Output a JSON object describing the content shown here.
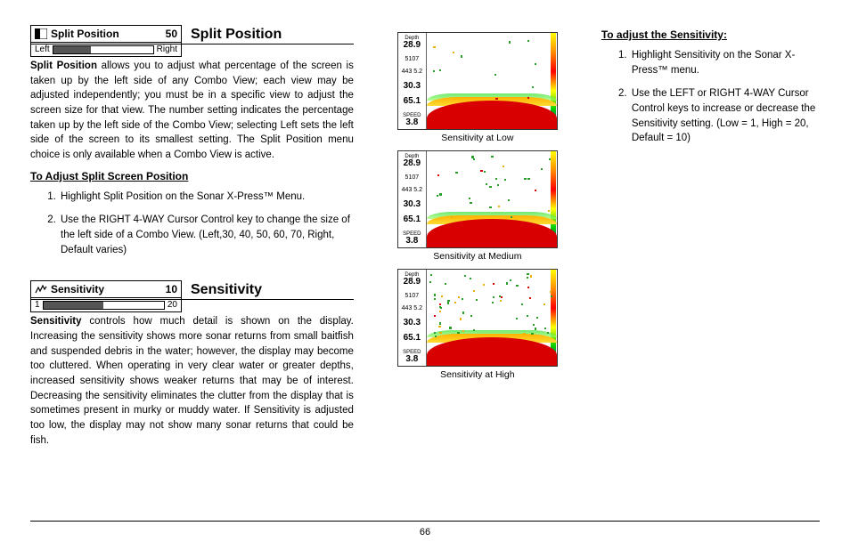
{
  "pageNumber": "66",
  "splitPosition": {
    "box": {
      "name": "Split Position",
      "value": "50",
      "leftLabel": "Left",
      "rightLabel": "Right",
      "fillPct": 38
    },
    "title": "Split Position",
    "lead": "Split Position",
    "body": " allows you to adjust what percentage of the screen is taken up by the left side of any Combo View; each view may be adjusted independently; you must be in a specific view to adjust the screen size for that view. The number setting indicates the percentage taken up by the left side of the Combo View; selecting Left sets the left side of the screen to its smallest setting. The Split Position menu choice is only available when a Combo View is active.",
    "subHeading": "To Adjust Split Screen Position",
    "steps": [
      "Highlight Split Position on the Sonar X-Press™ Menu.",
      "Use the RIGHT 4-WAY Cursor Control key to change the size of the left side of a Combo View. (Left,30, 40, 50, 60, 70, Right, Default varies)"
    ]
  },
  "sensitivity": {
    "box": {
      "name": "Sensitivity",
      "value": "10",
      "leftLabel": "1",
      "rightLabel": "20",
      "fillPct": 50
    },
    "title": "Sensitivity",
    "lead": "Sensitivity",
    "body": " controls how much detail is shown on the display. Increasing the sensitivity shows more sonar returns from small baitfish and suspended debris in the water; however, the display may become too cluttered. When operating in very clear water or greater depths, increased sensitivity shows weaker returns that may be of interest. Decreasing the sensitivity eliminates the clutter from the display that is sometimes present in murky or muddy water. If Sensitivity is adjusted too low, the display may not show many sonar returns that could be fish."
  },
  "sonarReadout": {
    "depth": "28.9",
    "l2": "5107",
    "l3": "443  5.2",
    "temp": "30.3",
    "temp2": "65.1",
    "speed": "3.8"
  },
  "thumbs": {
    "low": {
      "caption": "Sensitivity at Low",
      "noiseCount": 12
    },
    "med": {
      "caption": "Sensitivity at Medium",
      "noiseCount": 28
    },
    "high": {
      "caption": "Sensitivity at High",
      "noiseCount": 60
    }
  },
  "adjustSensitivity": {
    "subHeading": "To adjust the Sensitivity:",
    "steps": [
      "Highlight Sensitivity on the Sonar X-Press™ menu.",
      "Use the LEFT or RIGHT 4-WAY Cursor Control keys to increase or decrease the Sensitivity setting. (Low = 1, High = 20, Default = 10)"
    ]
  }
}
